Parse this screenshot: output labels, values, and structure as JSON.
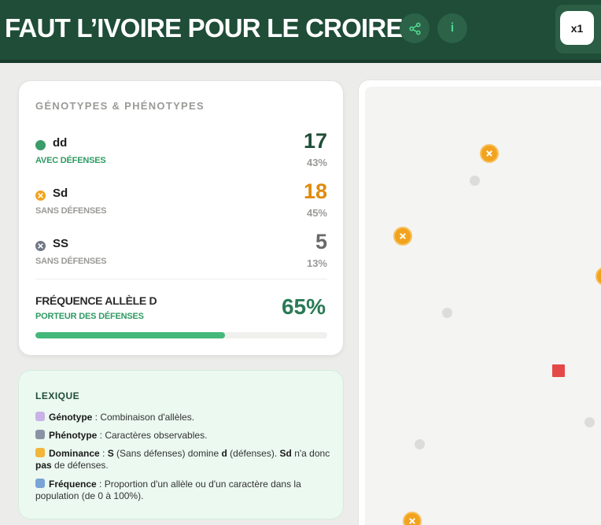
{
  "header": {
    "title": "FAUT L’IVOIRE POUR LE CROIRE",
    "share_icon": "share-icon",
    "info_label": "i",
    "speed_label": "x1"
  },
  "stats": {
    "title": "GÉNOTYPES & PHÉNOTYPES",
    "rows": [
      {
        "genotype": "dd",
        "phenotype": "AVEC DÉFENSES",
        "count": "17",
        "percent": "43%",
        "color": "#3a9c69",
        "icon": "circle-icon"
      },
      {
        "genotype": "Sd",
        "phenotype": "SANS DÉFENSES",
        "count": "18",
        "percent": "45%",
        "color": "#e08a0c",
        "icon": "x-icon"
      },
      {
        "genotype": "SS",
        "phenotype": "SANS DÉFENSES",
        "count": "5",
        "percent": "13%",
        "color": "#707784",
        "icon": "x-icon"
      }
    ],
    "frequency": {
      "label": "FRÉQUENCE ALLÈLE D",
      "sub": "PORTEUR DES DÉFENSES",
      "value": "65%",
      "fill_fraction": 0.65
    }
  },
  "lexicon": {
    "title": "LEXIQUE",
    "items": [
      {
        "icon": "dna-icon",
        "term": "Génotype",
        "def": " : Combinaison d'allèles."
      },
      {
        "icon": "elephant-icon",
        "term": "Phénotype",
        "def": " : Caractères observables."
      },
      {
        "icon": "crown-icon",
        "term": "Dominance",
        "def_parts": [
          " : ",
          "S",
          " (Sans défenses) domine ",
          "d",
          " (défenses). ",
          "Sd",
          " n'a donc ",
          "pas",
          " de défenses."
        ]
      },
      {
        "icon": "chart-icon",
        "term": "Fréquence",
        "def": " : Proportion d'un allèle ou d'un caractère dans la population (de 0 à 100%)."
      }
    ]
  },
  "colors": {
    "header_bg": "#1f4d37",
    "accent_green": "#44b87a",
    "orange": "#f2a31e",
    "predator": "#e44848"
  }
}
